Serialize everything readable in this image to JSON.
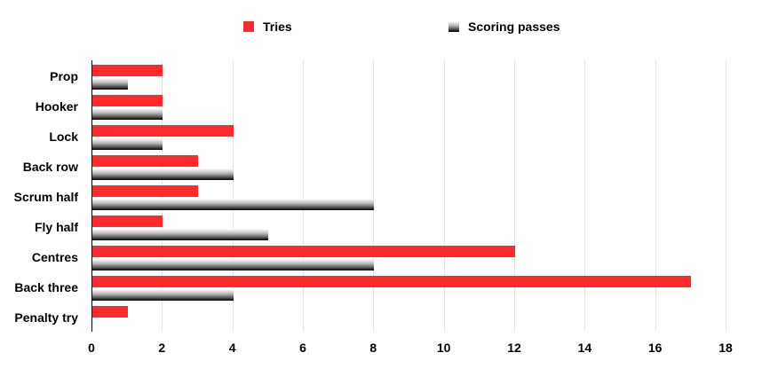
{
  "chart_data": {
    "type": "bar",
    "orientation": "horizontal",
    "title": "",
    "xlabel": "",
    "ylabel": "",
    "categories": [
      "Prop",
      "Hooker",
      "Lock",
      "Back row",
      "Scrum half",
      "Fly half",
      "Centres",
      "Back three",
      "Penalty try"
    ],
    "series": [
      {
        "name": "Tries",
        "color": "#ff2a2e",
        "values": [
          2,
          2,
          4,
          3,
          3,
          2,
          12,
          17,
          1
        ]
      },
      {
        "name": "Scoring passes",
        "color": "gradient-black",
        "values": [
          1,
          2,
          2,
          4,
          8,
          5,
          8,
          4,
          0
        ]
      }
    ],
    "xlim": [
      0,
      18
    ],
    "xticks": [
      "0",
      "2",
      "4",
      "6",
      "8",
      "10",
      "12",
      "14",
      "16",
      "18"
    ],
    "grid": true,
    "legend_position": "top"
  },
  "legend": {
    "tries": "Tries",
    "passes": "Scoring passes"
  }
}
